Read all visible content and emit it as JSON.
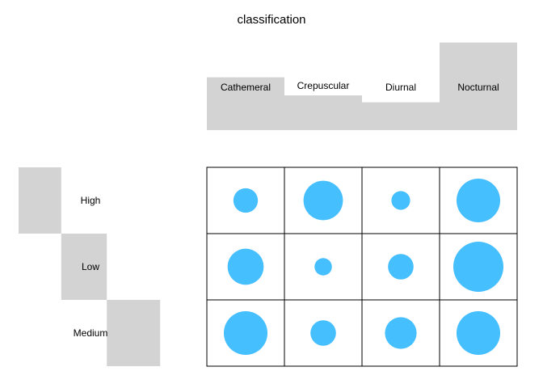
{
  "chart_data": {
    "type": "balloon",
    "title": "classification",
    "columns": [
      "Cathemeral",
      "Crepuscular",
      "Diurnal",
      "Nocturnal"
    ],
    "rows": [
      "High",
      "Low",
      "Medium"
    ],
    "values": [
      [
        6.0,
        15.5,
        3.5,
        19.0
      ],
      [
        13.0,
        3.0,
        6.5,
        25.0
      ],
      [
        19.0,
        6.5,
        10.0,
        19.0
      ]
    ],
    "column_totals": [
      38,
      25,
      20,
      63
    ],
    "row_totals": [
      44,
      47,
      55
    ],
    "circle_color": "#46BFFF",
    "bar_color": "#D3D3D3",
    "grid_color": "#000000"
  }
}
